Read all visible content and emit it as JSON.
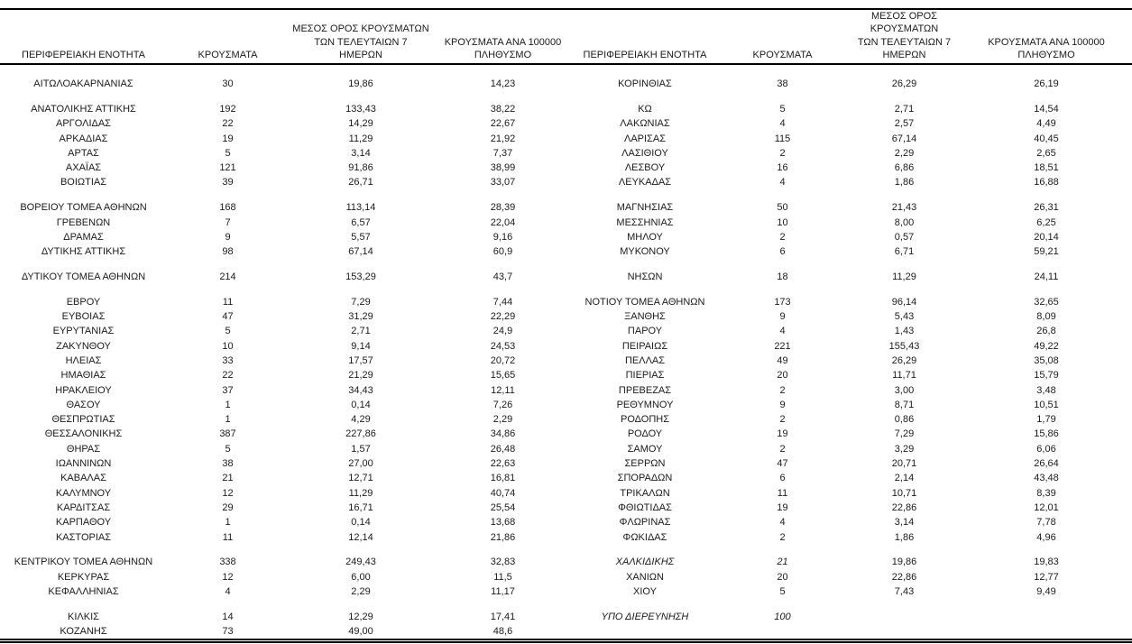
{
  "page": {
    "background": "#ffffff",
    "text_color": "#1a1a1a"
  },
  "table": {
    "headers": {
      "region": "ΠΕΡΙΦΕΡΕΙΑΚΗ ΕΝΟΤΗΤΑ",
      "cases": "ΚΡΟΥΣΜΑΤΑ",
      "avg7": "ΜΕΣΟΣ ΟΡΟΣ ΚΡΟΥΣΜΑΤΩΝ\nΤΩΝ ΤΕΛΕΥΤΑΙΩΝ 7\nΗΜΕΡΩΝ",
      "per100k": "ΚΡΟΥΣΜΑΤΑ ΑΝΑ 100000\nΠΛΗΘΥΣΜΟ"
    },
    "rows": [
      {
        "left": {
          "region": "ΑΙΤΩΛΟΑΚΑΡΝΑΝΙΑΣ",
          "cases": "30",
          "avg7": "19,86",
          "per100k": "14,23"
        },
        "right": {
          "region": "ΚΟΡΙΝΘΙΑΣ",
          "cases": "38",
          "avg7": "26,29",
          "per100k": "26,19"
        }
      },
      {
        "blank": true
      },
      {
        "left": {
          "region": "ΑΝΑΤΟΛΙΚΗΣ ΑΤΤΙΚΗΣ",
          "cases": "192",
          "avg7": "133,43",
          "per100k": "38,22"
        },
        "right": {
          "region": "ΚΩ",
          "cases": "5",
          "avg7": "2,71",
          "per100k": "14,54"
        }
      },
      {
        "left": {
          "region": "ΑΡΓΟΛΙΔΑΣ",
          "cases": "22",
          "avg7": "14,29",
          "per100k": "22,67"
        },
        "right": {
          "region": "ΛΑΚΩΝΙΑΣ",
          "cases": "4",
          "avg7": "2,57",
          "per100k": "4,49"
        }
      },
      {
        "left": {
          "region": "ΑΡΚΑΔΙΑΣ",
          "cases": "19",
          "avg7": "11,29",
          "per100k": "21,92"
        },
        "right": {
          "region": "ΛΑΡΙΣΑΣ",
          "cases": "115",
          "avg7": "67,14",
          "per100k": "40,45"
        }
      },
      {
        "left": {
          "region": "ΑΡΤΑΣ",
          "cases": "5",
          "avg7": "3,14",
          "per100k": "7,37"
        },
        "right": {
          "region": "ΛΑΣΙΘΙΟΥ",
          "cases": "2",
          "avg7": "2,29",
          "per100k": "2,65"
        }
      },
      {
        "left": {
          "region": "ΑΧΑΪΑΣ",
          "cases": "121",
          "avg7": "91,86",
          "per100k": "38,99"
        },
        "right": {
          "region": "ΛΕΣΒΟΥ",
          "cases": "16",
          "avg7": "6,86",
          "per100k": "18,51"
        }
      },
      {
        "left": {
          "region": "ΒΟΙΩΤΙΑΣ",
          "cases": "39",
          "avg7": "26,71",
          "per100k": "33,07"
        },
        "right": {
          "region": "ΛΕΥΚΑΔΑΣ",
          "cases": "4",
          "avg7": "1,86",
          "per100k": "16,88"
        }
      },
      {
        "blank": true
      },
      {
        "left": {
          "region": "ΒΟΡΕΙΟΥ ΤΟΜΕΑ ΑΘΗΝΩΝ",
          "cases": "168",
          "avg7": "113,14",
          "per100k": "28,39"
        },
        "right": {
          "region": "ΜΑΓΝΗΣΙΑΣ",
          "cases": "50",
          "avg7": "21,43",
          "per100k": "26,31"
        }
      },
      {
        "left": {
          "region": "ΓΡΕΒΕΝΩΝ",
          "cases": "7",
          "avg7": "6,57",
          "per100k": "22,04"
        },
        "right": {
          "region": "ΜΕΣΣΗΝΙΑΣ",
          "cases": "10",
          "avg7": "8,00",
          "per100k": "6,25"
        }
      },
      {
        "left": {
          "region": "ΔΡΑΜΑΣ",
          "cases": "9",
          "avg7": "5,57",
          "per100k": "9,16"
        },
        "right": {
          "region": "ΜΗΛΟΥ",
          "cases": "2",
          "avg7": "0,57",
          "per100k": "20,14"
        }
      },
      {
        "left": {
          "region": "ΔΥΤΙΚΗΣ ΑΤΤΙΚΗΣ",
          "cases": "98",
          "avg7": "67,14",
          "per100k": "60,9"
        },
        "right": {
          "region": "ΜΥΚΟΝΟΥ",
          "cases": "6",
          "avg7": "6,71",
          "per100k": "59,21"
        }
      },
      {
        "blank": true
      },
      {
        "left": {
          "region": "ΔΥΤΙΚΟΥ ΤΟΜΕΑ ΑΘΗΝΩΝ",
          "cases": "214",
          "avg7": "153,29",
          "per100k": "43,7"
        },
        "right": {
          "region": "ΝΗΣΩΝ",
          "cases": "18",
          "avg7": "11,29",
          "per100k": "24,11"
        }
      },
      {
        "blank": true
      },
      {
        "left": {
          "region": "ΕΒΡΟΥ",
          "cases": "11",
          "avg7": "7,29",
          "per100k": "7,44"
        },
        "right": {
          "region": "ΝΟΤΙΟΥ ΤΟΜΕΑ ΑΘΗΝΩΝ",
          "cases": "173",
          "avg7": "96,14",
          "per100k": "32,65"
        }
      },
      {
        "left": {
          "region": "ΕΥΒΟΙΑΣ",
          "cases": "47",
          "avg7": "31,29",
          "per100k": "22,29"
        },
        "right": {
          "region": "ΞΑΝΘΗΣ",
          "cases": "9",
          "avg7": "5,43",
          "per100k": "8,09"
        }
      },
      {
        "left": {
          "region": "ΕΥΡΥΤΑΝΙΑΣ",
          "cases": "5",
          "avg7": "2,71",
          "per100k": "24,9"
        },
        "right": {
          "region": "ΠΑΡΟΥ",
          "cases": "4",
          "avg7": "1,43",
          "per100k": "26,8"
        }
      },
      {
        "left": {
          "region": "ΖΑΚΥΝΘΟΥ",
          "cases": "10",
          "avg7": "9,14",
          "per100k": "24,53"
        },
        "right": {
          "region": "ΠΕΙΡΑΙΩΣ",
          "cases": "221",
          "avg7": "155,43",
          "per100k": "49,22"
        }
      },
      {
        "left": {
          "region": "ΗΛΕΙΑΣ",
          "cases": "33",
          "avg7": "17,57",
          "per100k": "20,72"
        },
        "right": {
          "region": "ΠΕΛΛΑΣ",
          "cases": "49",
          "avg7": "26,29",
          "per100k": "35,08"
        }
      },
      {
        "left": {
          "region": "ΗΜΑΘΙΑΣ",
          "cases": "22",
          "avg7": "21,29",
          "per100k": "15,65"
        },
        "right": {
          "region": "ΠΙΕΡΙΑΣ",
          "cases": "20",
          "avg7": "11,71",
          "per100k": "15,79"
        }
      },
      {
        "left": {
          "region": "ΗΡΑΚΛΕΙΟΥ",
          "cases": "37",
          "avg7": "34,43",
          "per100k": "12,11"
        },
        "right": {
          "region": "ΠΡΕΒΕΖΑΣ",
          "cases": "2",
          "avg7": "3,00",
          "per100k": "3,48"
        }
      },
      {
        "left": {
          "region": "ΘΑΣΟΥ",
          "cases": "1",
          "avg7": "0,14",
          "per100k": "7,26"
        },
        "right": {
          "region": "ΡΕΘΥΜΝΟΥ",
          "cases": "9",
          "avg7": "8,71",
          "per100k": "10,51"
        }
      },
      {
        "left": {
          "region": "ΘΕΣΠΡΩΤΙΑΣ",
          "cases": "1",
          "avg7": "4,29",
          "per100k": "2,29"
        },
        "right": {
          "region": "ΡΟΔΟΠΗΣ",
          "cases": "2",
          "avg7": "0,86",
          "per100k": "1,79"
        }
      },
      {
        "left": {
          "region": "ΘΕΣΣΑΛΟΝΙΚΗΣ",
          "cases": "387",
          "avg7": "227,86",
          "per100k": "34,86"
        },
        "right": {
          "region": "ΡΟΔΟΥ",
          "cases": "19",
          "avg7": "7,29",
          "per100k": "15,86"
        }
      },
      {
        "left": {
          "region": "ΘΗΡΑΣ",
          "cases": "5",
          "avg7": "1,57",
          "per100k": "26,48"
        },
        "right": {
          "region": "ΣΑΜΟΥ",
          "cases": "2",
          "avg7": "3,29",
          "per100k": "6,06"
        }
      },
      {
        "left": {
          "region": "ΙΩΑΝΝΙΝΩΝ",
          "cases": "38",
          "avg7": "27,00",
          "per100k": "22,63"
        },
        "right": {
          "region": "ΣΕΡΡΩΝ",
          "cases": "47",
          "avg7": "20,71",
          "per100k": "26,64"
        }
      },
      {
        "left": {
          "region": "ΚΑΒΑΛΑΣ",
          "cases": "21",
          "avg7": "12,71",
          "per100k": "16,81"
        },
        "right": {
          "region": "ΣΠΟΡΑΔΩΝ",
          "cases": "6",
          "avg7": "2,14",
          "per100k": "43,48"
        }
      },
      {
        "left": {
          "region": "ΚΑΛΥΜΝΟΥ",
          "cases": "12",
          "avg7": "11,29",
          "per100k": "40,74"
        },
        "right": {
          "region": "ΤΡΙΚΑΛΩΝ",
          "cases": "11",
          "avg7": "10,71",
          "per100k": "8,39"
        }
      },
      {
        "left": {
          "region": "ΚΑΡΔΙΤΣΑΣ",
          "cases": "29",
          "avg7": "16,71",
          "per100k": "25,54"
        },
        "right": {
          "region": "ΦΘΙΩΤΙΔΑΣ",
          "cases": "19",
          "avg7": "22,86",
          "per100k": "12,01"
        }
      },
      {
        "left": {
          "region": "ΚΑΡΠΑΘΟΥ",
          "cases": "1",
          "avg7": "0,14",
          "per100k": "13,68"
        },
        "right": {
          "region": "ΦΛΩΡΙΝΑΣ",
          "cases": "4",
          "avg7": "3,14",
          "per100k": "7,78"
        }
      },
      {
        "left": {
          "region": "ΚΑΣΤΟΡΙΑΣ",
          "cases": "11",
          "avg7": "12,14",
          "per100k": "21,86"
        },
        "right": {
          "region": "ΦΩΚΙΔΑΣ",
          "cases": "2",
          "avg7": "1,86",
          "per100k": "4,96"
        }
      },
      {
        "blank": true
      },
      {
        "left": {
          "region": "ΚΕΝΤΡΙΚΟΥ ΤΟΜΕΑ ΑΘΗΝΩΝ",
          "cases": "338",
          "avg7": "249,43",
          "per100k": "32,83"
        },
        "right": {
          "region": "ΧΑΛΚΙΔΙΚΗΣ",
          "cases": "21",
          "avg7": "19,86",
          "per100k": "19,83",
          "italic": true
        }
      },
      {
        "left": {
          "region": "ΚΕΡΚΥΡΑΣ",
          "cases": "12",
          "avg7": "6,00",
          "per100k": "11,5"
        },
        "right": {
          "region": "ΧΑΝΙΩΝ",
          "cases": "20",
          "avg7": "22,86",
          "per100k": "12,77"
        }
      },
      {
        "left": {
          "region": "ΚΕΦΑΛΛΗΝΙΑΣ",
          "cases": "4",
          "avg7": "2,29",
          "per100k": "11,17"
        },
        "right": {
          "region": "ΧΙΟΥ",
          "cases": "5",
          "avg7": "7,43",
          "per100k": "9,49"
        }
      },
      {
        "blank": true
      },
      {
        "left": {
          "region": "ΚΙΛΚΙΣ",
          "cases": "14",
          "avg7": "12,29",
          "per100k": "17,41"
        },
        "right": {
          "region": "ΥΠΟ ΔΙΕΡΕΥΝΗΣΗ",
          "cases": "100",
          "avg7": "",
          "per100k": "",
          "italic": true
        }
      },
      {
        "left": {
          "region": "ΚΟΖΑΝΗΣ",
          "cases": "73",
          "avg7": "49,00",
          "per100k": "48,6"
        },
        "right": {
          "region": "",
          "cases": "",
          "avg7": "",
          "per100k": ""
        }
      }
    ]
  }
}
